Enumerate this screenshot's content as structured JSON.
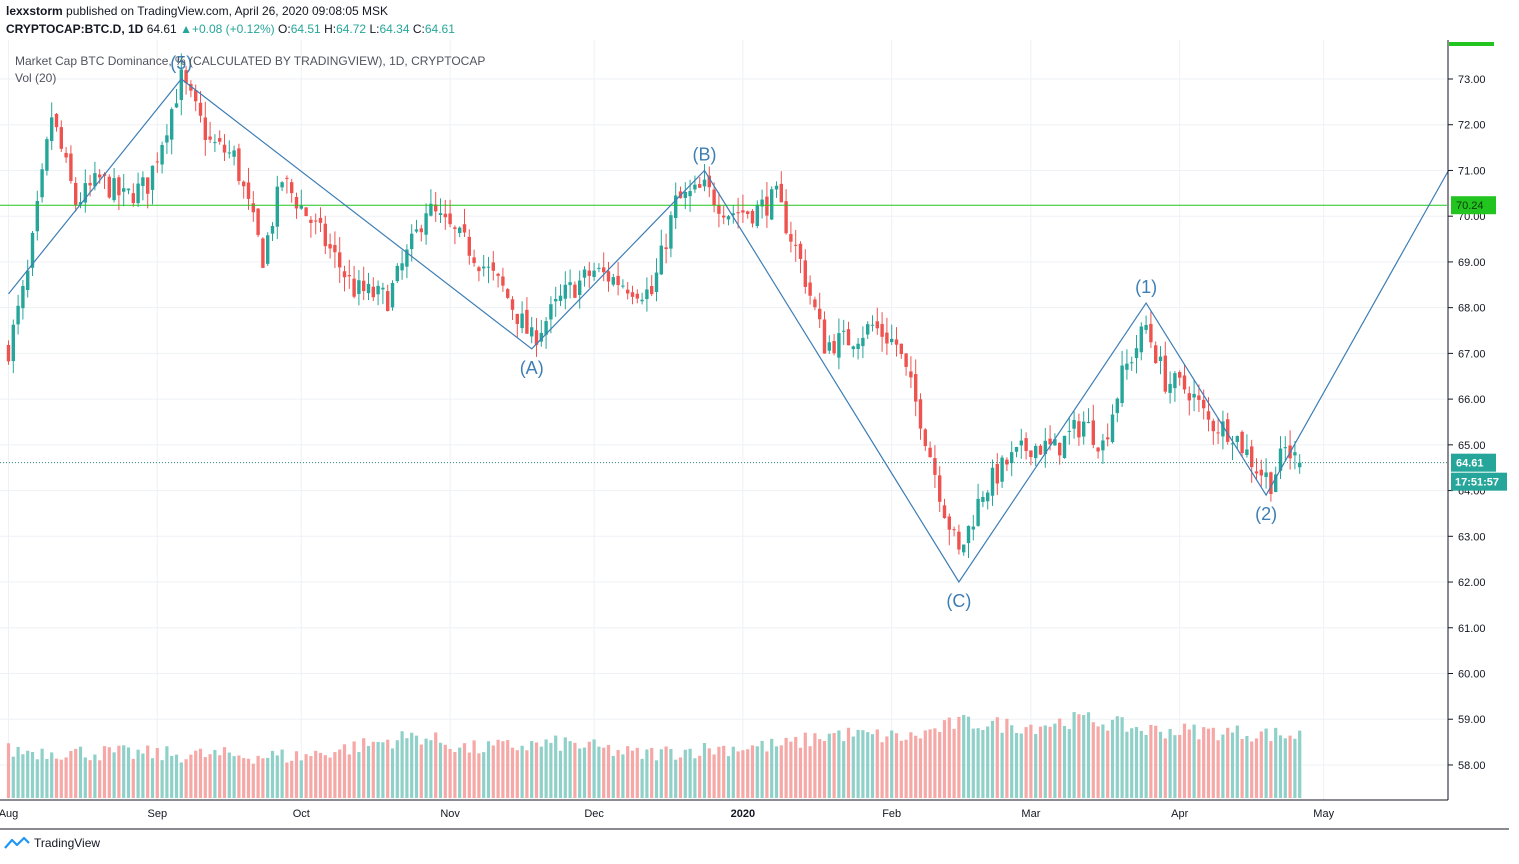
{
  "header": {
    "author": "lexxstorm",
    "published_text": "published on TradingView.com, April 26, 2020 09:08:05 MSK",
    "symbol": "CRYPTOCAP:BTC.D, 1D",
    "last": "64.61",
    "change": "+0.08 (+0.12%)",
    "o_label": "O:",
    "o_value": "64.51",
    "h_label": "H:",
    "h_value": "64.72",
    "l_label": "L:",
    "l_value": "64.34",
    "c_label": "C:",
    "c_value": "64.61"
  },
  "legend": {
    "title": "Market Cap BTC Dominance, % (CALCULATED BY TRADINGVIEW), 1D, CRYPTOCAP",
    "volume": "Vol (20)"
  },
  "footer": {
    "brand": "TradingView"
  },
  "colors": {
    "up": "#26a69a",
    "down": "#ef5350",
    "up_vol": "#8fd0c8",
    "down_vol": "#f5a8a6",
    "wave": "#3d7eb5",
    "hline": "#22c51f",
    "grid": "#eef1f5",
    "axis": "#131722"
  },
  "chart_data": {
    "type": "candlestick",
    "title": "Market Cap BTC Dominance, % (CALCULATED BY TRADINGVIEW), 1D, CRYPTOCAP",
    "timeframe": "1D",
    "ylim": [
      57.3,
      73.7
    ],
    "y_ticks": [
      "58.00",
      "59.00",
      "60.00",
      "61.00",
      "62.00",
      "63.00",
      "64.00",
      "65.00",
      "66.00",
      "67.00",
      "68.00",
      "69.00",
      "70.00",
      "71.00",
      "72.00",
      "73.00"
    ],
    "x_labels": [
      "Aug",
      "Sep",
      "Oct",
      "Nov",
      "Dec",
      "2020",
      "Feb",
      "Mar",
      "Apr",
      "May"
    ],
    "price_anchors": [
      [
        "Aug 1",
        67.1
      ],
      [
        "Aug 5",
        68.7
      ],
      [
        "Aug 10",
        72.2
      ],
      [
        "Aug 15",
        70.3
      ],
      [
        "Aug 20",
        70.8
      ],
      [
        "Aug 25",
        70.4
      ],
      [
        "Aug 30",
        70.7
      ],
      [
        "Sep 6",
        73.0
      ],
      [
        "Sep 12",
        71.6
      ],
      [
        "Sep 17",
        71.3
      ],
      [
        "Sep 23",
        69.1
      ],
      [
        "Sep 27",
        70.8
      ],
      [
        "Oct 5",
        69.6
      ],
      [
        "Oct 12",
        68.4
      ],
      [
        "Oct 19",
        68.2
      ],
      [
        "Oct 25",
        69.6
      ],
      [
        "Oct 27",
        70.2
      ],
      [
        "Nov 5",
        69.3
      ],
      [
        "Nov 12",
        68.4
      ],
      [
        "Nov 18",
        67.3
      ],
      [
        "Nov 25",
        68.3
      ],
      [
        "Dec 1",
        68.8
      ],
      [
        "Dec 8",
        68.5
      ],
      [
        "Dec 13",
        68.3
      ],
      [
        "Dec 18",
        70.3
      ],
      [
        "Dec 24",
        70.6
      ],
      [
        "Dec 29",
        70.1
      ],
      [
        "Jan 3",
        70.1
      ],
      [
        "Jan 8",
        70.4
      ],
      [
        "Jan 13",
        69.0
      ],
      [
        "Jan 18",
        67.2
      ],
      [
        "Jan 23",
        67.3
      ],
      [
        "Jan 28",
        67.6
      ],
      [
        "Feb 2",
        67.2
      ],
      [
        "Feb 7",
        65.6
      ],
      [
        "Feb 12",
        63.6
      ],
      [
        "Feb 15",
        62.6
      ],
      [
        "Feb 20",
        64.0
      ],
      [
        "Feb 25",
        64.6
      ],
      [
        "Mar 1",
        65.0
      ],
      [
        "Mar 6",
        64.9
      ],
      [
        "Mar 12",
        65.5
      ],
      [
        "Mar 16",
        65.0
      ],
      [
        "Mar 20",
        66.5
      ],
      [
        "Mar 25",
        67.6
      ],
      [
        "Mar 29",
        66.4
      ],
      [
        "Apr 3",
        66.2
      ],
      [
        "Apr 7",
        65.5
      ],
      [
        "Apr 12",
        65.3
      ],
      [
        "Apr 17",
        64.5
      ],
      [
        "Apr 20",
        64.2
      ],
      [
        "Apr 23",
        64.9
      ],
      [
        "Apr 26",
        64.61
      ]
    ],
    "volume_ylim": [
      56.0,
      62.0
    ],
    "volume_anchors": [
      [
        "Aug 1",
        58.5
      ],
      [
        "Sep 5",
        58.3
      ],
      [
        "Oct 1",
        58.2
      ],
      [
        "Oct 25",
        59.3
      ],
      [
        "Nov 5",
        58.6
      ],
      [
        "Nov 25",
        58.9
      ],
      [
        "Dec 10",
        58.3
      ],
      [
        "Dec 25",
        58.6
      ],
      [
        "Jan 10",
        58.8
      ],
      [
        "Jan 20",
        59.4
      ],
      [
        "Feb 5",
        59.2
      ],
      [
        "Feb 15",
        60.0
      ],
      [
        "Mar 1",
        59.8
      ],
      [
        "Mar 12",
        60.2
      ],
      [
        "Mar 25",
        59.6
      ],
      [
        "Apr 10",
        59.5
      ],
      [
        "Apr 26",
        59.3
      ]
    ],
    "wave_labels": [
      "(5)",
      "(A)",
      "(B)",
      "(C)",
      "(1)",
      "(2)"
    ],
    "wave_points": [
      {
        "label": "(5)",
        "date": "Sep 6",
        "value": 73.0
      },
      {
        "label": "(A)",
        "date": "Nov 18",
        "value": 67.1
      },
      {
        "label": "(B)",
        "date": "Dec 24",
        "value": 71.0
      },
      {
        "label": "(C)",
        "date": "Feb 15",
        "value": 62.0
      },
      {
        "label": "(1)",
        "date": "Mar 25",
        "value": 68.1
      },
      {
        "label": "(2)",
        "date": "Apr 19",
        "value": 63.9
      }
    ],
    "wave_start": {
      "date": "Aug 1",
      "value": 68.3
    },
    "wave_end": {
      "date": "May 27",
      "value": 71.0
    },
    "horizontal_line": {
      "value": 70.24,
      "label": "70.24"
    },
    "last_price": {
      "value": 64.61,
      "label": "64.61"
    },
    "countdown": "17:51:57"
  }
}
